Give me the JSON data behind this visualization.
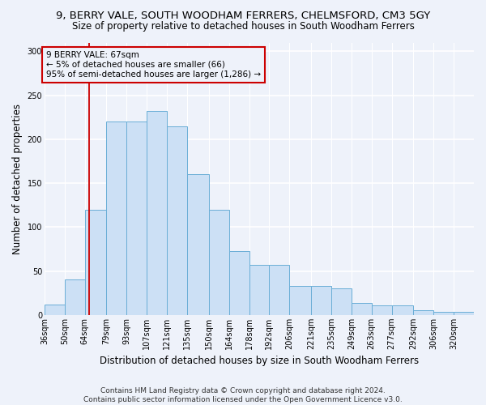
{
  "title": "9, BERRY VALE, SOUTH WOODHAM FERRERS, CHELMSFORD, CM3 5GY",
  "subtitle": "Size of property relative to detached houses in South Woodham Ferrers",
  "xlabel": "Distribution of detached houses by size in South Woodham Ferrers",
  "ylabel": "Number of detached properties",
  "categories": [
    "36sqm",
    "50sqm",
    "64sqm",
    "79sqm",
    "93sqm",
    "107sqm",
    "121sqm",
    "135sqm",
    "150sqm",
    "164sqm",
    "178sqm",
    "192sqm",
    "206sqm",
    "221sqm",
    "235sqm",
    "249sqm",
    "263sqm",
    "277sqm",
    "292sqm",
    "306sqm",
    "320sqm"
  ],
  "bar_edges": [
    36,
    50,
    64,
    79,
    93,
    107,
    121,
    135,
    150,
    164,
    178,
    192,
    206,
    221,
    235,
    249,
    263,
    277,
    292,
    306,
    320
  ],
  "bar_heights": [
    12,
    40,
    120,
    220,
    220,
    232,
    215,
    160,
    120,
    73,
    57,
    57,
    33,
    33,
    30,
    14,
    11,
    11,
    5,
    4,
    4
  ],
  "bar_fill_color": "#cce0f5",
  "bar_edge_color": "#6aaed6",
  "vline_x": 67,
  "vline_color": "#cc0000",
  "annotation_line1": "9 BERRY VALE: 67sqm",
  "annotation_line2": "← 5% of detached houses are smaller (66)",
  "annotation_line3": "95% of semi-detached houses are larger (1,286) →",
  "annotation_box_color": "#cc0000",
  "ylim": [
    0,
    310
  ],
  "yticks": [
    0,
    50,
    100,
    150,
    200,
    250,
    300
  ],
  "footer_line1": "Contains HM Land Registry data © Crown copyright and database right 2024.",
  "footer_line2": "Contains public sector information licensed under the Open Government Licence v3.0.",
  "bg_color": "#eef2fa",
  "plot_bg_color": "#eef2fa",
  "grid_color": "#ffffff",
  "title_fontsize": 9.5,
  "subtitle_fontsize": 8.5,
  "xlabel_fontsize": 8.5,
  "ylabel_fontsize": 8.5,
  "tick_fontsize": 7,
  "footer_fontsize": 6.5
}
